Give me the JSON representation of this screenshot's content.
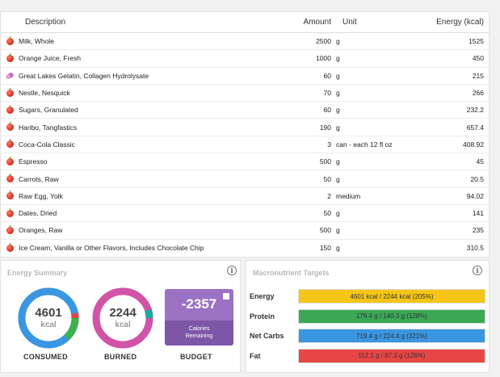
{
  "diary": {
    "headers": {
      "description": "Description",
      "amount": "Amount",
      "unit": "Unit",
      "energy": "Energy (kcal)"
    },
    "rows": [
      {
        "icon": "apple-icon",
        "description": "Milk, Whole",
        "amount": "2500",
        "unit": "g",
        "energy": "1525"
      },
      {
        "icon": "apple-icon",
        "description": "Orange Juice, Fresh",
        "amount": "1000",
        "unit": "g",
        "energy": "450"
      },
      {
        "icon": "pill-icon",
        "description": "Great Lakes Gelatin, Collagen Hydrolysate",
        "amount": "60",
        "unit": "g",
        "energy": "215"
      },
      {
        "icon": "apple-icon",
        "description": "Nestle, Nesquick",
        "amount": "70",
        "unit": "g",
        "energy": "266"
      },
      {
        "icon": "apple-icon",
        "description": "Sugars, Granulated",
        "amount": "60",
        "unit": "g",
        "energy": "232.2"
      },
      {
        "icon": "apple-icon",
        "description": "Haribo, Tangfastics",
        "amount": "190",
        "unit": "g",
        "energy": "657.4"
      },
      {
        "icon": "apple-icon",
        "description": "Coca-Cola Classic",
        "amount": "3",
        "unit": "can - each 12 fl oz",
        "energy": "408.92"
      },
      {
        "icon": "apple-icon",
        "description": "Espresso",
        "amount": "500",
        "unit": "g",
        "energy": "45"
      },
      {
        "icon": "apple-icon",
        "description": "Carrots, Raw",
        "amount": "50",
        "unit": "g",
        "energy": "20.5"
      },
      {
        "icon": "apple-icon",
        "description": "Raw Egg, Yolk",
        "amount": "2",
        "unit": "medium",
        "energy": "94.02"
      },
      {
        "icon": "apple-icon",
        "description": "Dates, Dried",
        "amount": "50",
        "unit": "g",
        "energy": "141"
      },
      {
        "icon": "apple-icon",
        "description": "Oranges, Raw",
        "amount": "500",
        "unit": "g",
        "energy": "235"
      },
      {
        "icon": "apple-icon",
        "description": "Ice Cream, Vanilla or Other Flavors, Includes Chocolate Chip",
        "amount": "150",
        "unit": "g",
        "energy": "310.5"
      }
    ]
  },
  "energy_summary": {
    "title": "Energy Summary",
    "consumed": {
      "value": "4601",
      "unit": "kcal",
      "label": "CONSUMED",
      "colors": [
        "#e84545",
        "#3cb04c",
        "#3a96e0"
      ]
    },
    "burned": {
      "value": "2244",
      "unit": "kcal",
      "label": "BURNED",
      "colors": [
        "#1fa89a",
        "#d154a8"
      ]
    },
    "budget": {
      "value": "-2357",
      "caption_line1": "Calories",
      "caption_line2": "Remaining",
      "label": "BUDGET"
    }
  },
  "macro_targets": {
    "title": "Macronutrient Targets",
    "rows": [
      {
        "label": "Energy",
        "text": "4601 kcal / 2244 kcal (205%)",
        "color": "#f5c518"
      },
      {
        "label": "Protein",
        "text": "179.4 g / 140.3 g (128%)",
        "color": "#3aa856"
      },
      {
        "label": "Net Carbs",
        "text": "719.4 g / 224.4 g (321%)",
        "color": "#3a96e0"
      },
      {
        "label": "Fat",
        "text": "112.1 g / 87.3 g (128%)",
        "color": "#e84545"
      }
    ]
  }
}
